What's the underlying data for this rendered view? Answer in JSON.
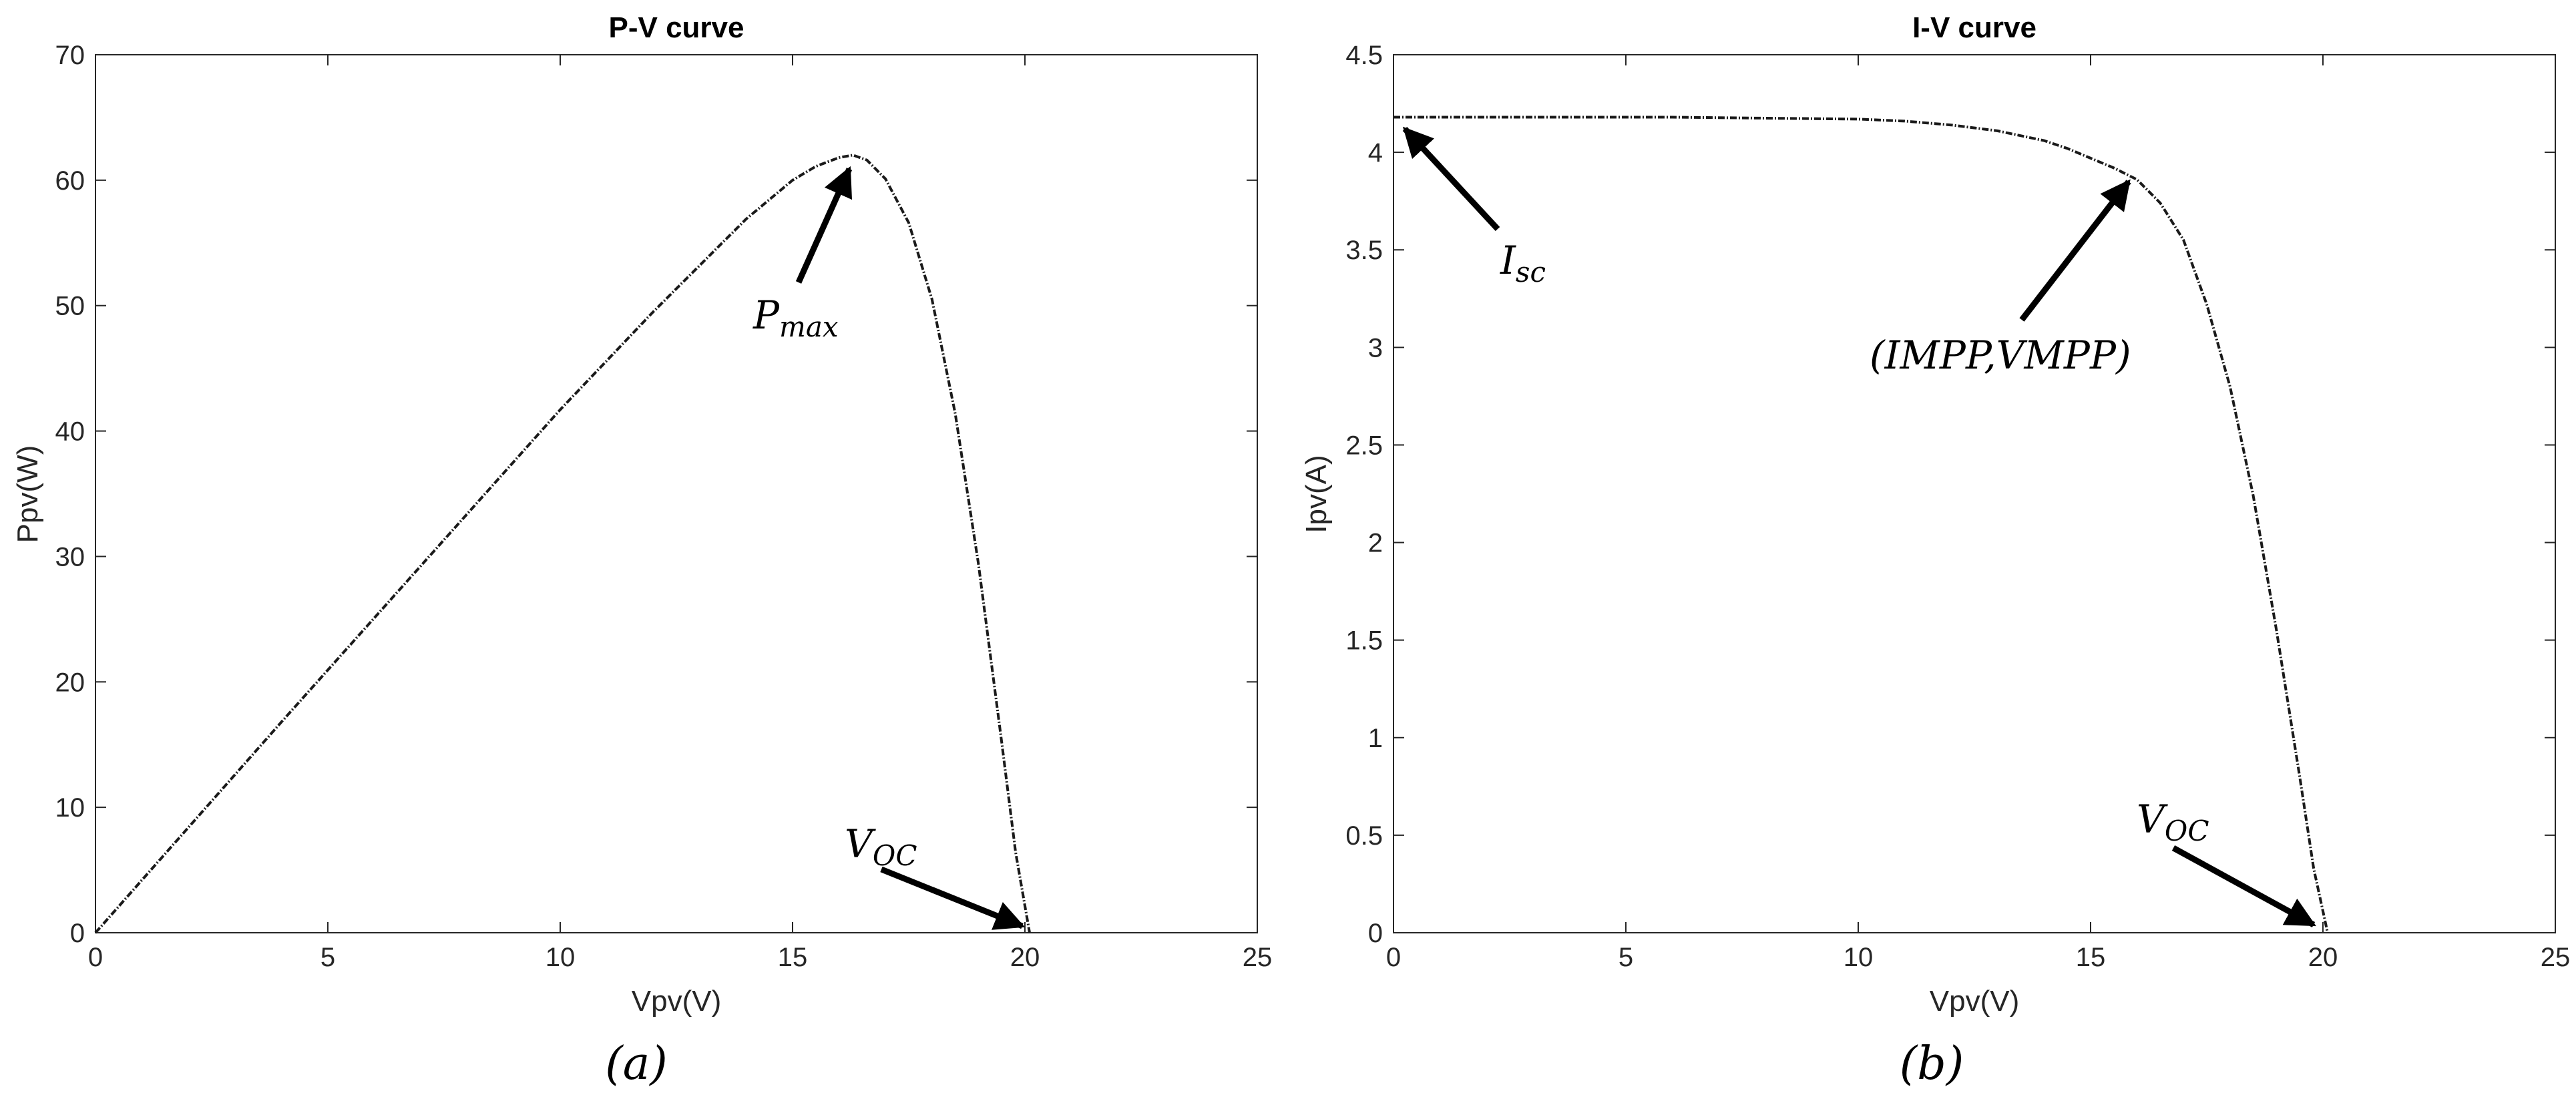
{
  "chart_data": [
    {
      "type": "line",
      "title": "P-V curve",
      "xlabel": "Vpv(V)",
      "ylabel": "Ppv(W)",
      "xlim": [
        0,
        25
      ],
      "ylim": [
        0,
        70
      ],
      "xticks": [
        0,
        5,
        10,
        15,
        20,
        25
      ],
      "yticks": [
        0,
        10,
        20,
        30,
        40,
        50,
        60,
        70
      ],
      "grid": false,
      "series": [
        {
          "x": [
            0,
            2,
            4,
            6,
            8,
            10,
            12,
            14,
            15,
            15.5,
            16,
            16.3,
            16.6,
            17,
            17.5,
            18,
            18.5,
            19,
            19.5,
            19.8,
            20.1
          ],
          "y": [
            0,
            8.4,
            16.8,
            25.1,
            33.4,
            41.7,
            49.5,
            56.9,
            60.0,
            61.1,
            61.8,
            62.0,
            61.6,
            60.1,
            56.6,
            50.5,
            41.4,
            29.4,
            15.2,
            6.4,
            0
          ]
        }
      ],
      "annotations": [
        {
          "base": "P",
          "sub": "max",
          "x": 16.3,
          "y": 62.0
        },
        {
          "base": "V",
          "sub": "OC",
          "x": 20.1,
          "y": 0
        }
      ],
      "caption": "(a)"
    },
    {
      "type": "line",
      "title": "I-V curve",
      "xlabel": "Vpv(V)",
      "ylabel": "Ipv(A)",
      "xlim": [
        0,
        25
      ],
      "ylim": [
        0,
        4.5
      ],
      "xticks": [
        0,
        5,
        10,
        15,
        20,
        25
      ],
      "yticks": [
        0,
        0.5,
        1,
        1.5,
        2,
        2.5,
        3,
        3.5,
        4,
        4.5
      ],
      "grid": false,
      "series": [
        {
          "x": [
            0,
            2,
            4,
            6,
            8,
            10,
            11,
            12,
            13,
            14,
            14.5,
            15,
            15.5,
            16,
            16.5,
            17,
            17.5,
            18,
            18.5,
            19,
            19.5,
            19.8,
            20.1
          ],
          "y": [
            4.18,
            4.18,
            4.18,
            4.18,
            4.175,
            4.17,
            4.16,
            4.14,
            4.11,
            4.06,
            4.02,
            3.97,
            3.92,
            3.86,
            3.74,
            3.55,
            3.22,
            2.8,
            2.24,
            1.55,
            0.8,
            0.33,
            0
          ]
        }
      ],
      "annotations": [
        {
          "base": "I",
          "sub": "sc",
          "x": 0,
          "y": 4.18
        },
        {
          "text": "(IMPP,VMPP)",
          "x": 16.0,
          "y": 3.86
        },
        {
          "base": "V",
          "sub": "OC",
          "x": 20.1,
          "y": 0
        }
      ],
      "caption": "(b)"
    }
  ]
}
